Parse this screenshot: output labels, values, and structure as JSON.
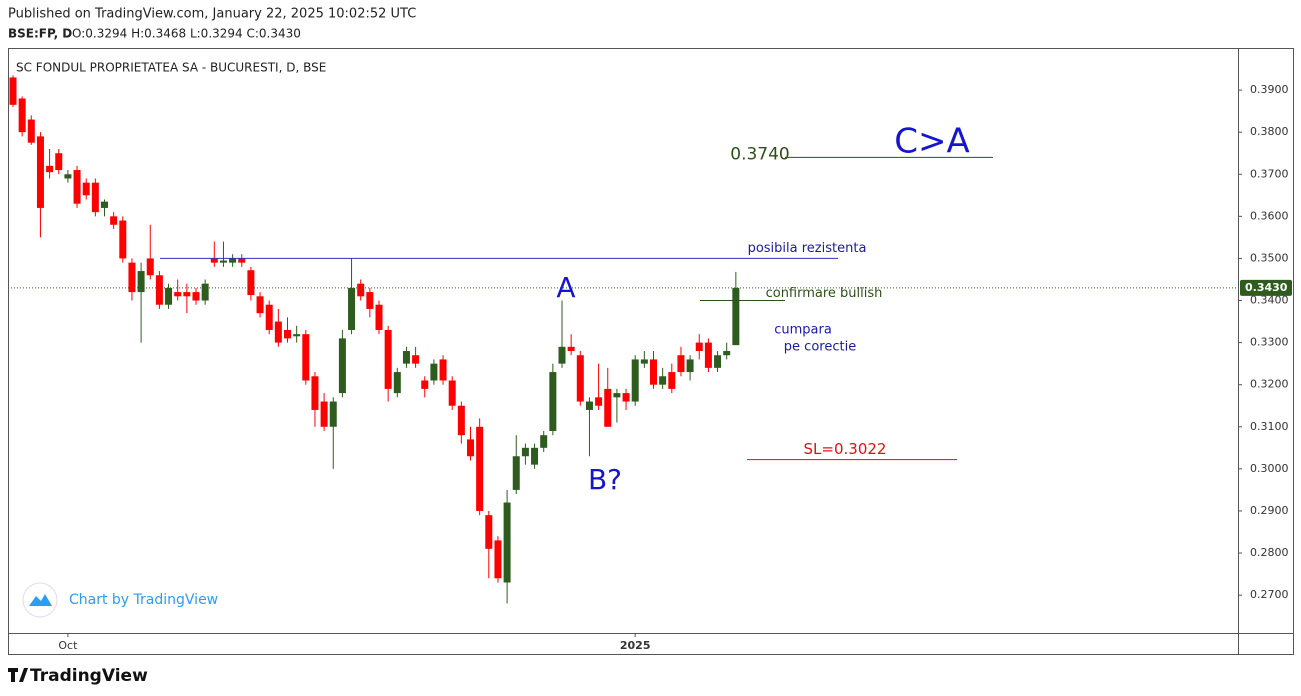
{
  "header": {
    "published": "Published on TradingView.com, January 22, 2025 10:02:52 UTC",
    "symbol": "BSE:FP, D",
    "ohlc": "O:0.3294 H:0.3468 L:0.3294 C:0.3430"
  },
  "chart_data": {
    "type": "candlestick",
    "title": "SC FONDUL PROPRIETATEA SA - BUCURESTI, D, BSE",
    "categories": [
      null,
      null,
      null,
      null,
      null,
      null,
      "Oct",
      null,
      null,
      null,
      null,
      null,
      null,
      null,
      null,
      null,
      null,
      null,
      null,
      null,
      null,
      null,
      null,
      null,
      null,
      null,
      null,
      null,
      null,
      null,
      null,
      null,
      null,
      null,
      null,
      null,
      null,
      null,
      null,
      null,
      null,
      null,
      null,
      null,
      null,
      null,
      null,
      null,
      null,
      null,
      null,
      null,
      null,
      null,
      null,
      null,
      null,
      null,
      null,
      null,
      null,
      null,
      null,
      null,
      null,
      null,
      null,
      null,
      "2025",
      null,
      null,
      null,
      null,
      null,
      null,
      null,
      null,
      null,
      null,
      null
    ],
    "open": [
      0.393,
      0.388,
      0.383,
      0.379,
      0.372,
      0.375,
      0.369,
      0.371,
      0.368,
      0.368,
      0.362,
      0.36,
      0.359,
      0.349,
      0.342,
      0.35,
      0.346,
      0.339,
      0.342,
      0.342,
      0.342,
      0.34,
      0.35,
      0.349,
      0.349,
      0.35,
      0.3472,
      0.341,
      0.339,
      0.335,
      0.333,
      0.3315,
      0.332,
      0.322,
      0.316,
      0.31,
      0.318,
      0.333,
      0.344,
      0.342,
      0.339,
      0.333,
      0.318,
      0.325,
      0.327,
      0.321,
      0.321,
      0.326,
      0.321,
      0.315,
      0.307,
      0.31,
      0.289,
      0.283,
      0.273,
      0.295,
      0.303,
      0.301,
      0.305,
      0.309,
      0.325,
      0.329,
      0.327,
      0.314,
      0.317,
      0.319,
      0.317,
      0.318,
      0.316,
      0.325,
      0.326,
      0.32,
      0.323,
      0.327,
      0.323,
      0.33,
      0.33,
      0.324,
      0.327,
      0.3294
    ],
    "high": [
      0.3935,
      0.3885,
      0.384,
      0.38,
      0.376,
      0.376,
      0.371,
      0.372,
      0.369,
      0.369,
      0.364,
      0.361,
      0.36,
      0.35,
      0.349,
      0.358,
      0.347,
      0.344,
      0.345,
      0.344,
      0.343,
      0.345,
      0.354,
      0.354,
      0.351,
      0.351,
      0.348,
      0.342,
      0.34,
      0.338,
      0.336,
      0.334,
      0.333,
      0.323,
      0.318,
      0.317,
      0.333,
      0.35,
      0.345,
      0.343,
      0.34,
      0.334,
      0.324,
      0.329,
      0.329,
      0.322,
      0.326,
      0.327,
      0.322,
      0.316,
      0.31,
      0.312,
      0.29,
      0.284,
      0.295,
      0.308,
      0.306,
      0.306,
      0.309,
      0.325,
      0.34,
      0.332,
      0.328,
      0.317,
      0.325,
      0.324,
      0.319,
      0.319,
      0.327,
      0.328,
      0.328,
      0.324,
      0.325,
      0.329,
      0.327,
      0.332,
      0.331,
      0.328,
      0.33,
      0.3468
    ],
    "low": [
      0.386,
      0.379,
      0.377,
      0.355,
      0.369,
      0.37,
      0.368,
      0.362,
      0.364,
      0.36,
      0.36,
      0.357,
      0.349,
      0.34,
      0.33,
      0.345,
      0.338,
      0.338,
      0.34,
      0.337,
      0.339,
      0.339,
      0.348,
      0.348,
      0.348,
      0.348,
      0.34,
      0.336,
      0.332,
      0.329,
      0.33,
      0.33,
      0.32,
      0.31,
      0.309,
      0.3,
      0.317,
      0.332,
      0.34,
      0.336,
      0.332,
      0.316,
      0.317,
      0.324,
      0.324,
      0.317,
      0.32,
      0.32,
      0.314,
      0.306,
      0.302,
      0.289,
      0.274,
      0.273,
      0.268,
      0.294,
      0.301,
      0.3,
      0.304,
      0.308,
      0.324,
      0.327,
      0.315,
      0.303,
      0.314,
      0.31,
      0.311,
      0.314,
      0.315,
      0.324,
      0.319,
      0.319,
      0.318,
      0.322,
      0.321,
      0.326,
      0.323,
      0.323,
      0.326,
      0.3294
    ],
    "close": [
      0.3865,
      0.38,
      0.3775,
      0.362,
      0.3705,
      0.371,
      0.37,
      0.363,
      0.365,
      0.361,
      0.3635,
      0.358,
      0.35,
      0.342,
      0.347,
      0.346,
      0.339,
      0.343,
      0.341,
      0.341,
      0.34,
      0.344,
      0.349,
      0.3495,
      0.35,
      0.349,
      0.3413,
      0.337,
      0.333,
      0.33,
      0.331,
      0.332,
      0.321,
      0.314,
      0.31,
      0.316,
      0.331,
      0.343,
      0.341,
      0.338,
      0.333,
      0.319,
      0.323,
      0.328,
      0.325,
      0.319,
      0.325,
      0.321,
      0.315,
      0.308,
      0.303,
      0.29,
      0.281,
      0.274,
      0.292,
      0.303,
      0.305,
      0.305,
      0.308,
      0.323,
      0.329,
      0.328,
      0.316,
      0.316,
      0.315,
      0.31,
      0.318,
      0.316,
      0.326,
      0.326,
      0.32,
      0.322,
      0.319,
      0.323,
      0.326,
      0.328,
      0.324,
      0.327,
      0.328,
      0.343
    ],
    "up_color": "#2e5c1f",
    "down_color": "#ff0000",
    "ylim": [
      0.261,
      0.4
    ],
    "yticks": [
      {
        "value": 0.27,
        "label": "0.2700"
      },
      {
        "value": 0.28,
        "label": "0.2800"
      },
      {
        "value": 0.29,
        "label": "0.2900"
      },
      {
        "value": 0.3,
        "label": "0.3000"
      },
      {
        "value": 0.31,
        "label": "0.3100"
      },
      {
        "value": 0.32,
        "label": "0.3200"
      },
      {
        "value": 0.33,
        "label": "0.3300"
      },
      {
        "value": 0.34,
        "label": "0.3400"
      },
      {
        "value": 0.35,
        "label": "0.3500"
      },
      {
        "value": 0.36,
        "label": "0.3600"
      },
      {
        "value": 0.37,
        "label": "0.3700"
      },
      {
        "value": 0.38,
        "label": "0.3800"
      },
      {
        "value": 0.39,
        "label": "0.3900"
      }
    ],
    "last_price": {
      "value": 0.343,
      "label": "0.3430"
    },
    "annotations": [
      {
        "text": "A"
      },
      {
        "text": "B?"
      },
      {
        "text": "C>A"
      },
      {
        "text": "0.3740",
        "level": 0.374
      },
      {
        "text": "posibila rezistenta",
        "level": 0.35
      },
      {
        "text": "confirmare bullish",
        "level": 0.34
      },
      {
        "text": "cumpara"
      },
      {
        "text": "pe corectie"
      },
      {
        "text": "SL=0.3022",
        "level": 0.3022
      }
    ]
  },
  "watermark": "Chart by TradingView",
  "footer": "TradingView"
}
